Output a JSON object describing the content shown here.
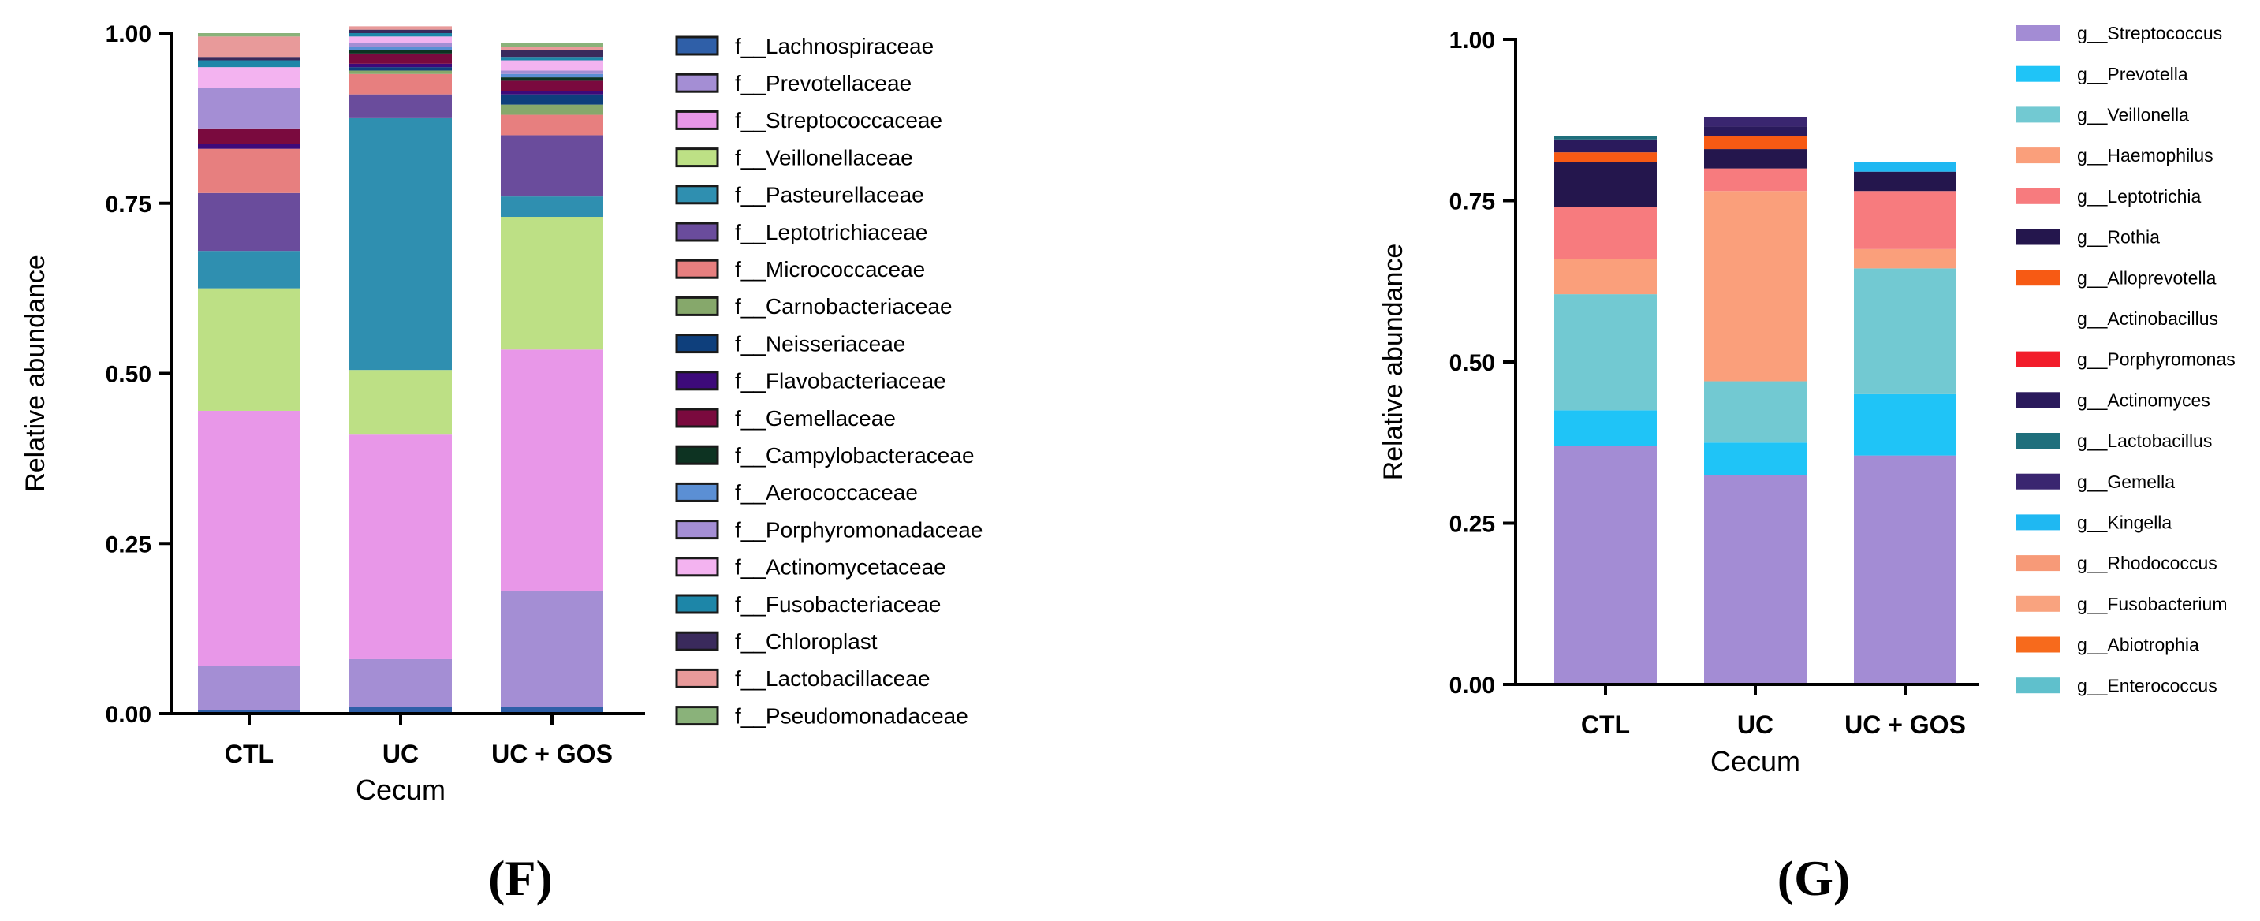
{
  "chart_data": [
    {
      "panel_label": "(F)",
      "type": "bar",
      "stacked": true,
      "xlabel": "Cecum",
      "ylabel": "Relative abundance",
      "ylim": [
        0,
        1
      ],
      "yticks": [
        "0.00",
        "0.25",
        "0.50",
        "0.75",
        "1.00"
      ],
      "categories": [
        "CTL",
        "UC",
        "UC + GOS"
      ],
      "grid": false,
      "legend_position": "right",
      "series": [
        {
          "name": "f__Lachnospiraceae",
          "color": "#2f5fa8",
          "values": [
            0.005,
            0.01,
            0.01
          ]
        },
        {
          "name": "f__Prevotellaceae",
          "color": "#a48ed4",
          "values": [
            0.065,
            0.07,
            0.17
          ]
        },
        {
          "name": "f__Streptococcaceae",
          "color": "#e897e8",
          "values": [
            0.375,
            0.33,
            0.355
          ]
        },
        {
          "name": "f__Veillonellaceae",
          "color": "#bde085",
          "values": [
            0.18,
            0.095,
            0.195
          ]
        },
        {
          "name": "f__Pasteurellaceae",
          "color": "#2f8fb0",
          "values": [
            0.055,
            0.37,
            0.03
          ]
        },
        {
          "name": "f__Leptotrichiaceae",
          "color": "#6a4c9c",
          "values": [
            0.085,
            0.035,
            0.09
          ]
        },
        {
          "name": "f__Micrococcaceae",
          "color": "#e77f7f",
          "values": [
            0.065,
            0.03,
            0.03
          ]
        },
        {
          "name": "f__Carnobacteriaceae",
          "color": "#86a86b",
          "values": [
            0.0,
            0.005,
            0.015
          ]
        },
        {
          "name": "f__Neisseriaceae",
          "color": "#0e3f7c",
          "values": [
            0.0,
            0.005,
            0.015
          ]
        },
        {
          "name": "f__Flavobacteriaceae",
          "color": "#3d0a7a",
          "values": [
            0.007,
            0.005,
            0.005
          ]
        },
        {
          "name": "f__Gemellaceae",
          "color": "#7a0a3e",
          "values": [
            0.023,
            0.015,
            0.015
          ]
        },
        {
          "name": "f__Campylobacteraceae",
          "color": "#0d3322",
          "values": [
            0.0,
            0.005,
            0.005
          ]
        },
        {
          "name": "f__Aerococcaceae",
          "color": "#5b8fd4",
          "values": [
            0.0,
            0.005,
            0.005
          ]
        },
        {
          "name": "f__Porphyromonadaceae",
          "color": "#a48ed4",
          "values": [
            0.06,
            0.005,
            0.005
          ]
        },
        {
          "name": "f__Actinomycetaceae",
          "color": "#f3b3f0",
          "values": [
            0.03,
            0.01,
            0.015
          ]
        },
        {
          "name": "f__Fusobacteriaceae",
          "color": "#1d86a8",
          "values": [
            0.01,
            0.005,
            0.005
          ]
        },
        {
          "name": "f__Chloroplast",
          "color": "#3a2a5c",
          "values": [
            0.005,
            0.005,
            0.01
          ]
        },
        {
          "name": "f__Lactobacillaceae",
          "color": "#e89a9a",
          "values": [
            0.03,
            0.005,
            0.005
          ]
        },
        {
          "name": "f__Pseudomonadaceae",
          "color": "#8ab27a",
          "values": [
            0.005,
            0.0,
            0.005
          ]
        }
      ]
    },
    {
      "panel_label": "(G)",
      "type": "bar",
      "stacked": true,
      "xlabel": "Cecum",
      "ylabel": "Relative abundance",
      "ylim": [
        0,
        1
      ],
      "yticks": [
        "0.00",
        "0.25",
        "0.50",
        "0.75",
        "1.00"
      ],
      "categories": [
        "CTL",
        "UC",
        "UC + GOS"
      ],
      "grid": false,
      "legend_position": "right",
      "series": [
        {
          "name": "g__Streptococcus",
          "color": "#a38cd4",
          "values": [
            0.37,
            0.325,
            0.355
          ]
        },
        {
          "name": "g__Prevotella",
          "color": "#1fc4f7",
          "values": [
            0.055,
            0.05,
            0.095
          ]
        },
        {
          "name": "g__Veillonella",
          "color": "#72c9d2",
          "values": [
            0.18,
            0.095,
            0.195
          ]
        },
        {
          "name": "g__Haemophilus",
          "color": "#fa9f7b",
          "values": [
            0.055,
            0.295,
            0.03
          ]
        },
        {
          "name": "g__Leptotrichia",
          "color": "#f77b7e",
          "values": [
            0.08,
            0.035,
            0.09
          ]
        },
        {
          "name": "g__Rothia",
          "color": "#24164d",
          "values": [
            0.07,
            0.03,
            0.03
          ]
        },
        {
          "name": "g__Alloprevotella",
          "color": "#f75a14",
          "values": [
            0.015,
            0.02,
            0.0
          ]
        },
        {
          "name": "g__Actinobacillus",
          "color": "#ffffff",
          "values": [
            0.0,
            0.0,
            0.0
          ]
        },
        {
          "name": "g__Porphyromonas",
          "color": "#f21d2a",
          "values": [
            0.0,
            0.0,
            0.0
          ]
        },
        {
          "name": "g__Actinomyces",
          "color": "#2a1a5c",
          "values": [
            0.02,
            0.015,
            0.0
          ]
        },
        {
          "name": "g__Lactobacillus",
          "color": "#1f6f7c",
          "values": [
            0.005,
            0.0,
            0.0
          ]
        },
        {
          "name": "g__Gemella",
          "color": "#3a2670",
          "values": [
            0.0,
            0.015,
            0.0
          ]
        },
        {
          "name": "g__Kingella",
          "color": "#1fb8f2",
          "values": [
            0.0,
            0.0,
            0.015
          ]
        },
        {
          "name": "g__Rhodococcus",
          "color": "#f79a78",
          "values": [
            0.0,
            0.0,
            0.0
          ]
        },
        {
          "name": "g__Fusobacterium",
          "color": "#f9a37f",
          "values": [
            0.0,
            0.0,
            0.0
          ]
        },
        {
          "name": "g__Abiotrophia",
          "color": "#f76a1c",
          "values": [
            0.0,
            0.0,
            0.0
          ]
        },
        {
          "name": "g__Enterococcus",
          "color": "#5fc0cc",
          "values": [
            0.0,
            0.0,
            0.0
          ]
        }
      ]
    }
  ]
}
